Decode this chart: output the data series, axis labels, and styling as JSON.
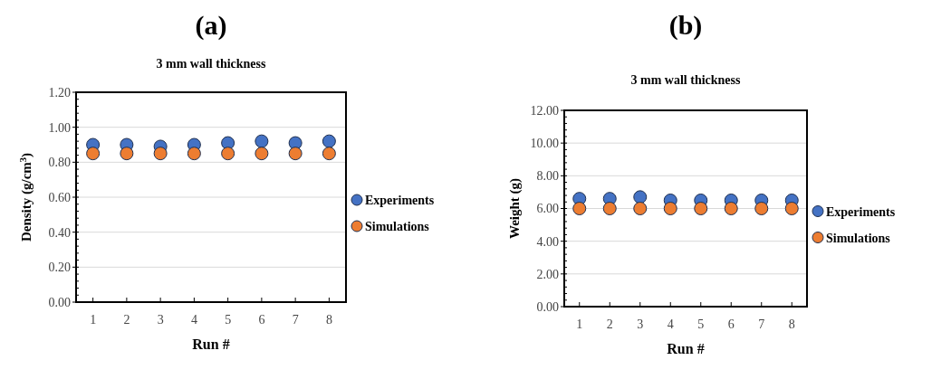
{
  "chart_data": [
    {
      "type": "scatter",
      "title": "(a)",
      "subtitle": "3 mm wall thickness",
      "xlabel": "Run #",
      "ylabel": "Density (g/cm$^{3}$)",
      "categories": [
        "1",
        "2",
        "3",
        "4",
        "5",
        "6",
        "7",
        "8"
      ],
      "ylim": [
        0,
        1.2
      ],
      "yticks": [
        {
          "value": 0,
          "label": "0.00"
        },
        {
          "value": 0.2,
          "label": "0.20"
        },
        {
          "value": 0.4,
          "label": "0.40"
        },
        {
          "value": 0.6,
          "label": "0.60"
        },
        {
          "value": 0.8,
          "label": "0.80"
        },
        {
          "value": 1,
          "label": "1.00"
        },
        {
          "value": 1.2,
          "label": "1.20"
        }
      ],
      "grid": "y",
      "legend": "right",
      "marker": "circle",
      "series": [
        {
          "name": "Experiments",
          "color": "#4472c4",
          "values": [
            0.9,
            0.9,
            0.89,
            0.9,
            0.91,
            0.92,
            0.91,
            0.92
          ]
        },
        {
          "name": "Simulations",
          "color": "#ed7d31",
          "values": [
            0.85,
            0.85,
            0.85,
            0.85,
            0.85,
            0.85,
            0.85,
            0.85
          ]
        }
      ]
    },
    {
      "type": "scatter",
      "title": "(b)",
      "subtitle": "3 mm wall thickness",
      "xlabel": "Run #",
      "ylabel": "Weight (g)",
      "categories": [
        "1",
        "2",
        "3",
        "4",
        "5",
        "6",
        "7",
        "8"
      ],
      "ylim": [
        0,
        12
      ],
      "yticks": [
        {
          "value": 0,
          "label": "0.00"
        },
        {
          "value": 2,
          "label": "2.00"
        },
        {
          "value": 4,
          "label": "4.00"
        },
        {
          "value": 6,
          "label": "6.00"
        },
        {
          "value": 8,
          "label": "8.00"
        },
        {
          "value": 10,
          "label": "10.00"
        },
        {
          "value": 12,
          "label": "12.00"
        }
      ],
      "grid": "y",
      "legend": "right",
      "marker": "circle",
      "series": [
        {
          "name": "Experiments",
          "color": "#4472c4",
          "values": [
            6.6,
            6.6,
            6.7,
            6.5,
            6.5,
            6.5,
            6.5,
            6.5
          ]
        },
        {
          "name": "Simulations",
          "color": "#ed7d31",
          "values": [
            6.0,
            6.0,
            6.0,
            6.0,
            6.0,
            6.0,
            6.0,
            6.0
          ]
        }
      ]
    }
  ]
}
